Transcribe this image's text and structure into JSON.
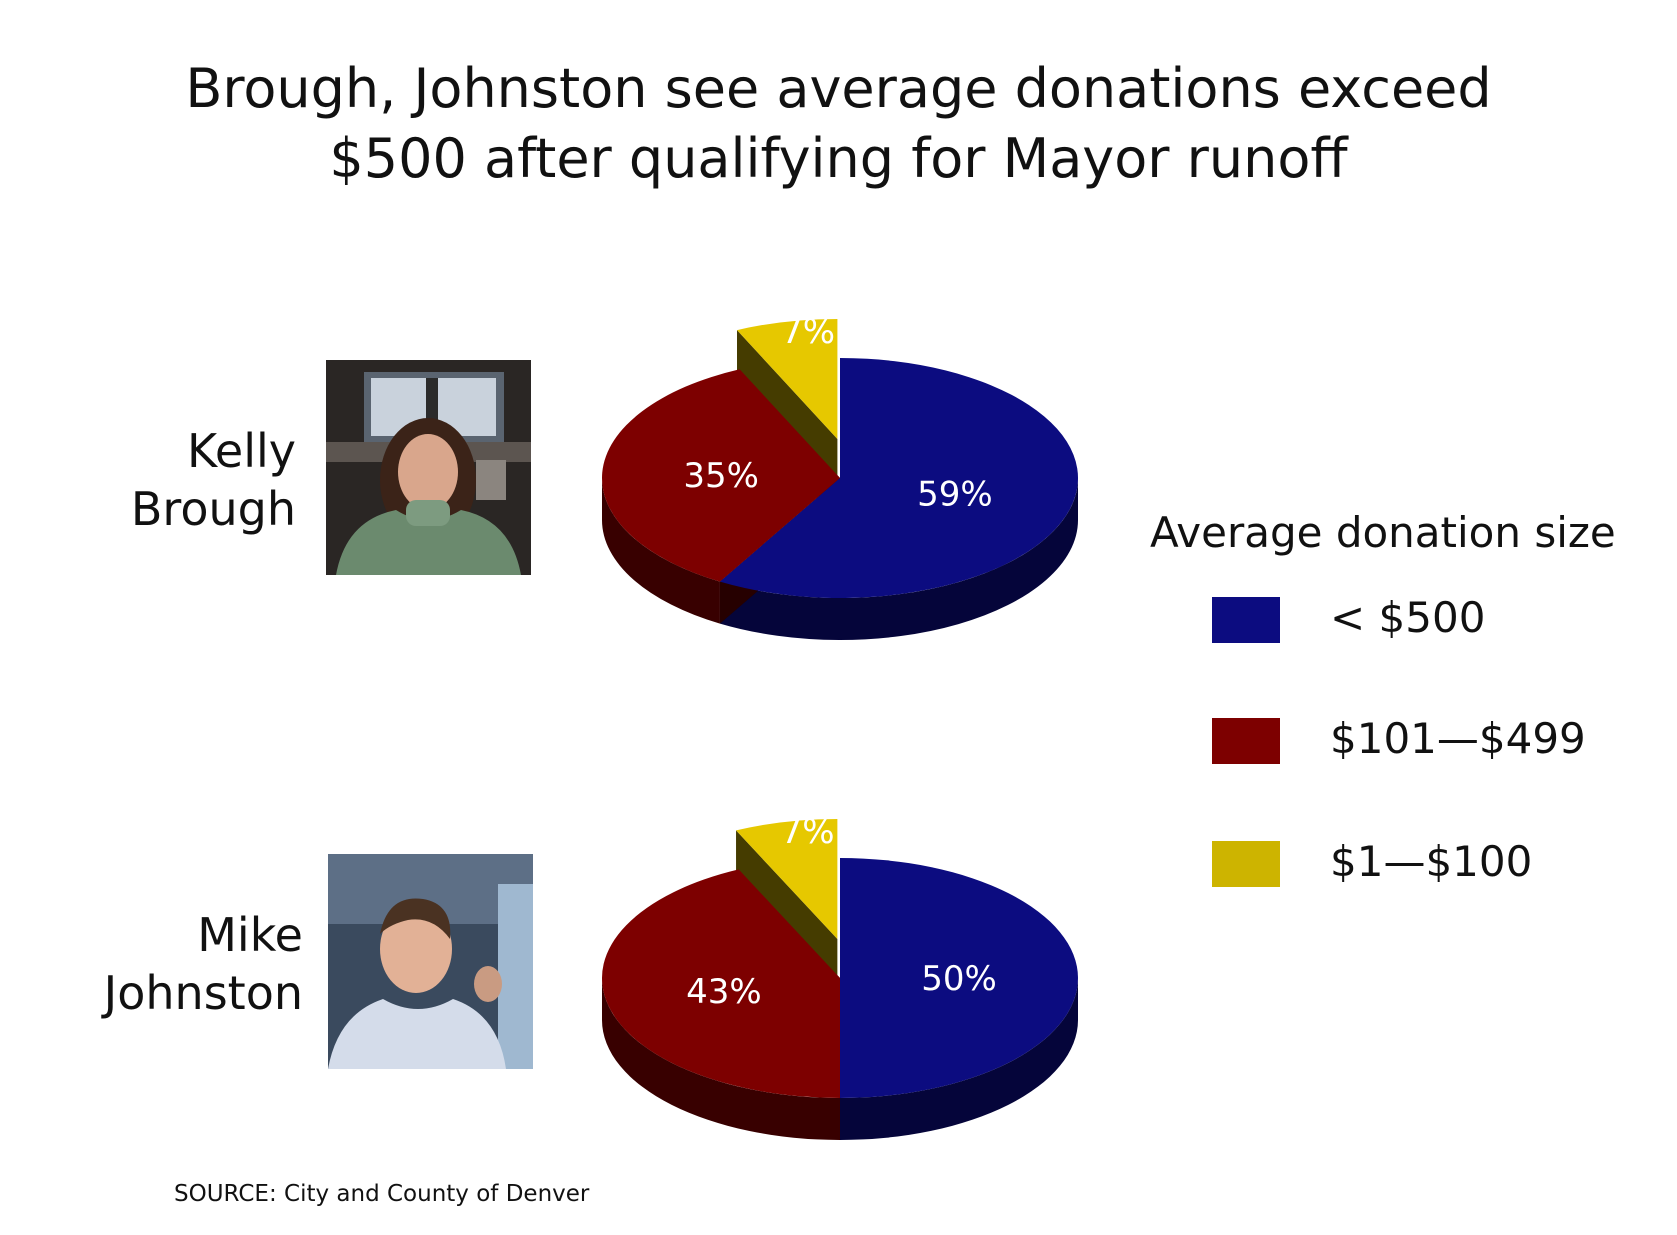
{
  "title": {
    "line1": "Brough, Johnston see average donations exceed",
    "line2": "$500 after qualifying for Mayor runoff"
  },
  "legend": {
    "title": "Average donation size",
    "items": [
      {
        "label": "< $500",
        "color": "#0c0c80"
      },
      {
        "label": "$101—$499",
        "color": "#7d0000"
      },
      {
        "label": "$1—$100",
        "color": "#cdb400"
      }
    ]
  },
  "source": "SOURCE: City and County of Denver",
  "candidates": [
    {
      "first": "Kelly",
      "last": "Brough"
    },
    {
      "first": "Mike",
      "last": "Johnston"
    }
  ],
  "chart_data": [
    {
      "type": "pie",
      "title": "Kelly Brough",
      "categories": [
        "< $500",
        "$101—$499",
        "$1—$100"
      ],
      "values": [
        59,
        35,
        7
      ],
      "labels": [
        "59%",
        "35%",
        "7%"
      ],
      "colors": [
        "#0c0c80",
        "#7d0000",
        "#e6c800"
      ],
      "three_d": true,
      "exploded": [
        "$1—$100"
      ]
    },
    {
      "type": "pie",
      "title": "Mike Johnston",
      "categories": [
        "< $500",
        "$101—$499",
        "$1—$100"
      ],
      "values": [
        50,
        43,
        7
      ],
      "labels": [
        "50%",
        "43%",
        "7%"
      ],
      "colors": [
        "#0c0c80",
        "#7d0000",
        "#e6c800"
      ],
      "three_d": true,
      "exploded": [
        "$1—$100"
      ]
    }
  ]
}
